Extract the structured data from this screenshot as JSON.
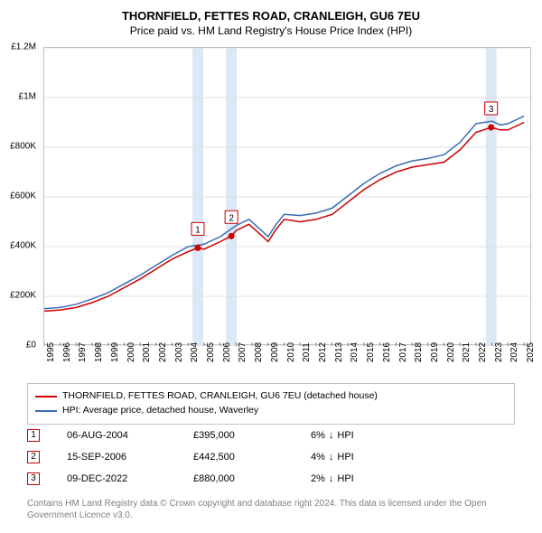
{
  "title": "THORNFIELD, FETTES ROAD, CRANLEIGH, GU6 7EU",
  "subtitle": "Price paid vs. HM Land Registry's House Price Index (HPI)",
  "chart": {
    "type": "line",
    "background_color": "#ffffff",
    "border_color": "#c0c0c0",
    "grid_color": "#e0e0e0",
    "highlight_band_color": "#dce8f6",
    "xlim": [
      1995,
      2025.5
    ],
    "ylim": [
      0,
      1200000
    ],
    "ytick_step": 200000,
    "ytick_labels": [
      "£0",
      "£200K",
      "£400K",
      "£600K",
      "£800K",
      "£1M",
      "£1.2M"
    ],
    "xtick_years": [
      1995,
      1996,
      1997,
      1998,
      1999,
      2000,
      2001,
      2002,
      2003,
      2004,
      2005,
      2006,
      2007,
      2008,
      2009,
      2010,
      2011,
      2012,
      2013,
      2014,
      2015,
      2016,
      2017,
      2018,
      2019,
      2020,
      2021,
      2022,
      2023,
      2024,
      2025
    ],
    "series": [
      {
        "name": "subject",
        "label": "THORNFIELD, FETTES ROAD, CRANLEIGH, GU6 7EU (detached house)",
        "color": "#cc0000",
        "line_width": 1.5,
        "data": [
          [
            1995.0,
            140000
          ],
          [
            1996.0,
            145000
          ],
          [
            1997.0,
            155000
          ],
          [
            1998.0,
            175000
          ],
          [
            1999.0,
            200000
          ],
          [
            2000.0,
            235000
          ],
          [
            2001.0,
            270000
          ],
          [
            2002.0,
            310000
          ],
          [
            2003.0,
            350000
          ],
          [
            2004.0,
            380000
          ],
          [
            2004.6,
            395000
          ],
          [
            2005.0,
            390000
          ],
          [
            2006.0,
            420000
          ],
          [
            2006.7,
            442500
          ],
          [
            2007.0,
            465000
          ],
          [
            2007.8,
            490000
          ],
          [
            2008.5,
            450000
          ],
          [
            2009.0,
            420000
          ],
          [
            2009.5,
            470000
          ],
          [
            2010.0,
            510000
          ],
          [
            2011.0,
            500000
          ],
          [
            2012.0,
            510000
          ],
          [
            2013.0,
            530000
          ],
          [
            2014.0,
            580000
          ],
          [
            2015.0,
            630000
          ],
          [
            2016.0,
            670000
          ],
          [
            2017.0,
            700000
          ],
          [
            2018.0,
            720000
          ],
          [
            2019.0,
            730000
          ],
          [
            2020.0,
            740000
          ],
          [
            2021.0,
            790000
          ],
          [
            2022.0,
            860000
          ],
          [
            2022.94,
            880000
          ],
          [
            2023.5,
            870000
          ],
          [
            2024.0,
            870000
          ],
          [
            2025.0,
            900000
          ]
        ]
      },
      {
        "name": "hpi",
        "label": "HPI: Average price, detached house, Waverley",
        "color": "#3b6db3",
        "line_width": 1.5,
        "data": [
          [
            1995.0,
            150000
          ],
          [
            1996.0,
            155000
          ],
          [
            1997.0,
            168000
          ],
          [
            1998.0,
            190000
          ],
          [
            1999.0,
            215000
          ],
          [
            2000.0,
            250000
          ],
          [
            2001.0,
            285000
          ],
          [
            2002.0,
            325000
          ],
          [
            2003.0,
            365000
          ],
          [
            2004.0,
            400000
          ],
          [
            2005.0,
            410000
          ],
          [
            2006.0,
            440000
          ],
          [
            2007.0,
            485000
          ],
          [
            2007.8,
            510000
          ],
          [
            2008.5,
            470000
          ],
          [
            2009.0,
            440000
          ],
          [
            2009.5,
            490000
          ],
          [
            2010.0,
            530000
          ],
          [
            2011.0,
            525000
          ],
          [
            2012.0,
            535000
          ],
          [
            2013.0,
            555000
          ],
          [
            2014.0,
            605000
          ],
          [
            2015.0,
            655000
          ],
          [
            2016.0,
            695000
          ],
          [
            2017.0,
            725000
          ],
          [
            2018.0,
            745000
          ],
          [
            2019.0,
            755000
          ],
          [
            2020.0,
            770000
          ],
          [
            2021.0,
            820000
          ],
          [
            2022.0,
            895000
          ],
          [
            2023.0,
            905000
          ],
          [
            2023.5,
            890000
          ],
          [
            2024.0,
            895000
          ],
          [
            2025.0,
            925000
          ]
        ]
      }
    ],
    "sale_markers": [
      {
        "n": "1",
        "x": 2004.6,
        "y": 395000,
        "color": "#cc0000"
      },
      {
        "n": "2",
        "x": 2006.7,
        "y": 442500,
        "color": "#cc0000"
      },
      {
        "n": "3",
        "x": 2022.94,
        "y": 880000,
        "color": "#cc0000"
      }
    ],
    "marker_radius": 3.5,
    "marker_box_size": 14,
    "axis_fontsize": 10,
    "title_fontsize": 13,
    "subtitle_fontsize": 12
  },
  "legend": {
    "items": [
      {
        "color": "#cc0000",
        "label": "THORNFIELD, FETTES ROAD, CRANLEIGH, GU6 7EU (detached house)"
      },
      {
        "color": "#3b6db3",
        "label": "HPI: Average price, detached house, Waverley"
      }
    ]
  },
  "sales": [
    {
      "n": "1",
      "date": "06-AUG-2004",
      "price": "£395,000",
      "delta_pct": "6%",
      "delta_dir": "↓",
      "delta_label": "HPI",
      "color": "#cc0000"
    },
    {
      "n": "2",
      "date": "15-SEP-2006",
      "price": "£442,500",
      "delta_pct": "4%",
      "delta_dir": "↓",
      "delta_label": "HPI",
      "color": "#cc0000"
    },
    {
      "n": "3",
      "date": "09-DEC-2022",
      "price": "£880,000",
      "delta_pct": "2%",
      "delta_dir": "↓",
      "delta_label": "HPI",
      "color": "#cc0000"
    }
  ],
  "attribution": "Contains HM Land Registry data © Crown copyright and database right 2024. This data is licensed under the Open Government Licence v3.0."
}
